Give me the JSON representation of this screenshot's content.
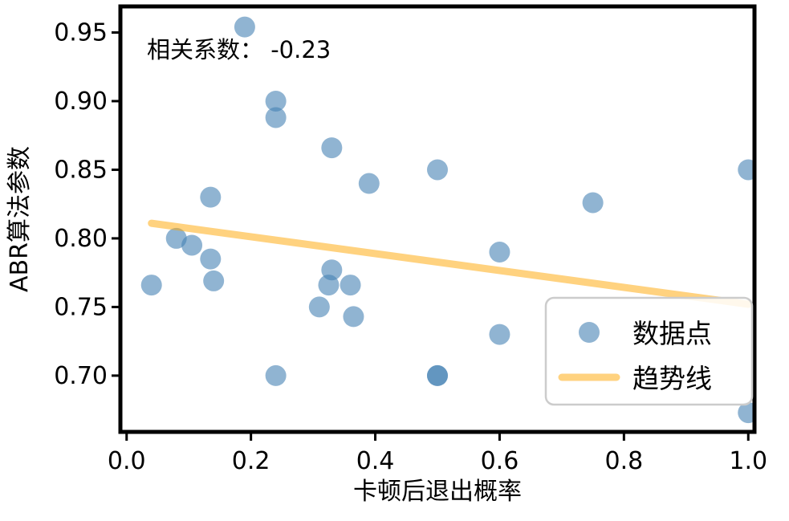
{
  "chart_data": {
    "type": "scatter",
    "title": "",
    "annotation": "相关系数： -0.23",
    "xlabel": "卡顿后退出概率",
    "ylabel": "ABR算法参数",
    "xlim": [
      -0.01,
      1.01
    ],
    "ylim": [
      0.659,
      0.969
    ],
    "xticks": [
      0.0,
      0.2,
      0.4,
      0.6,
      0.8,
      1.0
    ],
    "yticks": [
      0.7,
      0.75,
      0.8,
      0.85,
      0.9,
      0.95
    ],
    "grid": false,
    "legend_position": "lower right",
    "series": [
      {
        "name": "数据点",
        "type": "scatter",
        "color": "#4682b4",
        "alpha": 0.6,
        "points": [
          [
            0.04,
            0.766
          ],
          [
            0.08,
            0.8
          ],
          [
            0.105,
            0.795
          ],
          [
            0.135,
            0.83
          ],
          [
            0.135,
            0.785
          ],
          [
            0.14,
            0.769
          ],
          [
            0.19,
            0.954
          ],
          [
            0.24,
            0.9
          ],
          [
            0.24,
            0.888
          ],
          [
            0.24,
            0.7
          ],
          [
            0.31,
            0.75
          ],
          [
            0.33,
            0.866
          ],
          [
            0.33,
            0.777
          ],
          [
            0.325,
            0.766
          ],
          [
            0.36,
            0.766
          ],
          [
            0.365,
            0.743
          ],
          [
            0.39,
            0.84
          ],
          [
            0.5,
            0.85
          ],
          [
            0.5,
            0.7
          ],
          [
            0.5,
            0.7
          ],
          [
            0.6,
            0.79
          ],
          [
            0.6,
            0.73
          ],
          [
            0.75,
            0.826
          ],
          [
            1.0,
            0.85
          ],
          [
            1.0,
            0.673
          ]
        ]
      },
      {
        "name": "趋势线",
        "type": "line",
        "color": "#ffa500",
        "alpha": 0.5,
        "points": [
          [
            0.04,
            0.811
          ],
          [
            1.0,
            0.752
          ]
        ]
      }
    ],
    "frame_color": "#000000",
    "legend_border_color": "#cccccc"
  }
}
